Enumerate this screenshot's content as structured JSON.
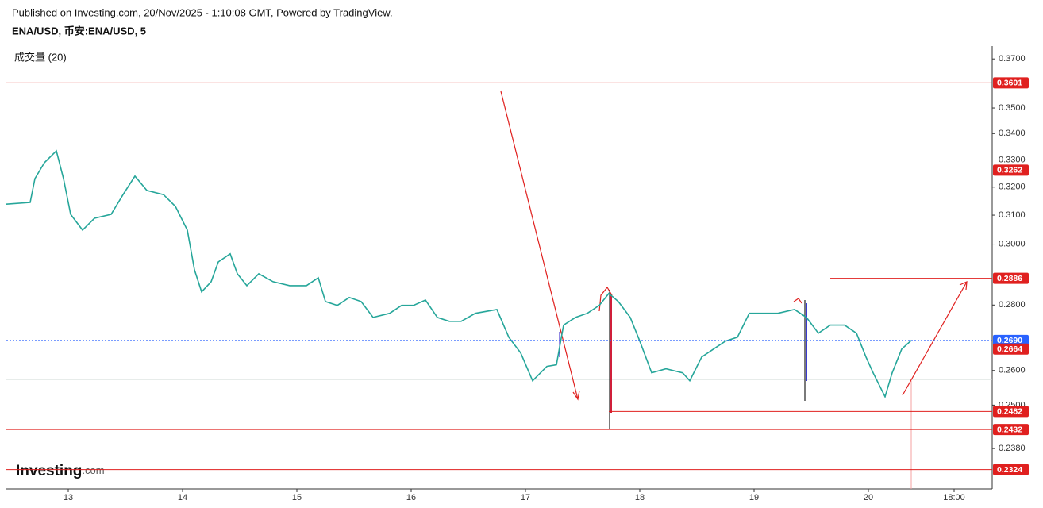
{
  "header": {
    "published": "Published on Investing.com, 20/Nov/2025 - 1:10:08 GMT, Powered by TradingView.",
    "symbol": "ENA/USD, 币安:ENA/USD, 5",
    "indicator": "成交量 (20)",
    "logo": "Investing",
    "logo_suffix": ".com"
  },
  "chart_data": {
    "type": "line",
    "log_scale": true,
    "x": [
      -13,
      -8,
      -7,
      -5,
      -2.5,
      -1,
      0.5,
      3,
      5.5,
      9,
      11.5,
      14,
      16.5,
      20,
      22.5,
      25,
      26.5,
      28,
      30,
      31.5,
      34,
      35.5,
      37.5,
      40,
      43,
      46.5,
      50,
      52.5,
      54,
      56.5,
      59,
      61.5,
      64,
      67.5,
      70,
      72.5,
      75,
      77.5,
      80,
      82.5,
      85.5,
      90,
      92.5,
      95,
      97.5,
      100.5,
      102.5,
      104,
      106.5,
      109,
      111.5,
      113.5,
      115.5,
      118,
      120,
      122.5,
      125.5,
      129,
      130.5,
      133,
      135.5,
      138,
      140.5,
      143,
      145.5,
      149,
      152.5,
      155,
      157.5,
      160,
      163,
      165.5,
      167.5,
      169,
      171.5,
      173,
      175,
      177
    ],
    "series": [
      {
        "name": "ENA/USD",
        "color": "#26a69a",
        "values": [
          0.3139,
          0.3145,
          0.3231,
          0.329,
          0.3334,
          0.3231,
          0.3103,
          0.3048,
          0.3089,
          0.3103,
          0.3173,
          0.324,
          0.3188,
          0.3173,
          0.3131,
          0.3048,
          0.2914,
          0.2842,
          0.2875,
          0.294,
          0.2967,
          0.2901,
          0.2862,
          0.2901,
          0.2875,
          0.2862,
          0.2862,
          0.2888,
          0.2811,
          0.2799,
          0.2824,
          0.2811,
          0.2761,
          0.2774,
          0.2799,
          0.2799,
          0.2816,
          0.2761,
          0.2749,
          0.2749,
          0.2774,
          0.2786,
          0.27,
          0.2652,
          0.257,
          0.2612,
          0.2617,
          0.2737,
          0.2761,
          0.2774,
          0.2799,
          0.2837,
          0.2811,
          0.2761,
          0.2688,
          0.2593,
          0.2605,
          0.2593,
          0.257,
          0.264,
          0.2664,
          0.2688,
          0.27,
          0.2774,
          0.2774,
          0.2774,
          0.2786,
          0.2761,
          0.2712,
          0.2737,
          0.2737,
          0.2712,
          0.264,
          0.2593,
          0.2524,
          0.2593,
          0.2664,
          0.269
        ]
      }
    ],
    "xlim": [
      -13,
      194
    ],
    "ylim": [
      0.229,
      0.385
    ],
    "xticks": [
      {
        "value": 0,
        "label": "13"
      },
      {
        "value": 24,
        "label": "14"
      },
      {
        "value": 48,
        "label": "15"
      },
      {
        "value": 72,
        "label": "16"
      },
      {
        "value": 96,
        "label": "17"
      },
      {
        "value": 120,
        "label": "18"
      },
      {
        "value": 144,
        "label": "19"
      },
      {
        "value": 168,
        "label": "20"
      },
      {
        "value": 186,
        "label": "18:00"
      }
    ],
    "yticks": [
      {
        "value": 0.37,
        "label": "0.3700"
      },
      {
        "value": 0.35,
        "label": "0.3500"
      },
      {
        "value": 0.34,
        "label": "0.3400"
      },
      {
        "value": 0.33,
        "label": "0.3300"
      },
      {
        "value": 0.32,
        "label": "0.3200"
      },
      {
        "value": 0.31,
        "label": "0.3100"
      },
      {
        "value": 0.3,
        "label": "0.3000"
      },
      {
        "value": 0.28,
        "label": "0.2800"
      },
      {
        "value": 0.26,
        "label": "0.2600"
      },
      {
        "value": 0.25,
        "label": "0.2500"
      },
      {
        "value": 0.238,
        "label": "0.2380"
      }
    ],
    "levels": [
      {
        "value": 0.3601,
        "label": "0.3601",
        "color": "#e0201f",
        "from": -13
      },
      {
        "value": 0.3262,
        "label": "0.3262",
        "color": "#e0201f"
      },
      {
        "value": 0.2886,
        "label": "0.2886",
        "color": "#e0201f",
        "from": 160
      },
      {
        "value": 0.269,
        "label": "0.2690",
        "color": "#2962ff",
        "from": -13,
        "dashed": true
      },
      {
        "value": 0.2664,
        "label": "0.2664",
        "color": "#e0201f"
      },
      {
        "value": 0.2482,
        "label": "0.2482",
        "color": "#e0201f",
        "from": 113.5
      },
      {
        "value": 0.2432,
        "label": "0.2432",
        "color": "#e0201f",
        "from": -13
      },
      {
        "value": 0.2324,
        "label": "0.2324",
        "color": "#e0201f",
        "from": -13
      }
    ]
  }
}
